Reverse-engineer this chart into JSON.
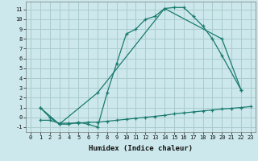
{
  "title": "",
  "xlabel": "Humidex (Indice chaleur)",
  "bg_color": "#cce8ec",
  "grid_color": "#aacccc",
  "line_color": "#1a7a6e",
  "xlim": [
    -0.5,
    23.5
  ],
  "ylim": [
    -1.5,
    11.8
  ],
  "xticks": [
    0,
    1,
    2,
    3,
    4,
    5,
    6,
    7,
    8,
    9,
    10,
    11,
    12,
    13,
    14,
    15,
    16,
    17,
    18,
    19,
    20,
    21,
    22,
    23
  ],
  "yticks": [
    -1,
    0,
    1,
    2,
    3,
    4,
    5,
    6,
    7,
    8,
    9,
    10,
    11
  ],
  "curve1_x": [
    1,
    2,
    3,
    4,
    5,
    6,
    7,
    8,
    9,
    10,
    11,
    12,
    13,
    14,
    15,
    16,
    17,
    18,
    19,
    20,
    22
  ],
  "curve1_y": [
    1,
    0,
    -0.7,
    -0.7,
    -0.5,
    -0.7,
    -1.0,
    2.5,
    5.5,
    8.5,
    9.0,
    10.0,
    10.3,
    11.1,
    11.2,
    11.2,
    10.3,
    9.3,
    8.0,
    6.3,
    2.8
  ],
  "curve2_x": [
    1,
    3,
    7,
    14,
    20,
    22
  ],
  "curve2_y": [
    1,
    -0.7,
    2.5,
    11.1,
    8.0,
    2.8
  ],
  "curve3_x": [
    1,
    2,
    3,
    4,
    5,
    6,
    7,
    8,
    9,
    10,
    11,
    12,
    13,
    14,
    15,
    16,
    17,
    18,
    19,
    20,
    21,
    22,
    23
  ],
  "curve3_y": [
    -0.3,
    -0.3,
    -0.6,
    -0.6,
    -0.6,
    -0.5,
    -0.5,
    -0.4,
    -0.3,
    -0.2,
    -0.1,
    0.0,
    0.1,
    0.2,
    0.35,
    0.45,
    0.55,
    0.65,
    0.75,
    0.85,
    0.92,
    1.0,
    1.1
  ],
  "xlabel_fontsize": 6.5,
  "tick_fontsize": 5.0
}
